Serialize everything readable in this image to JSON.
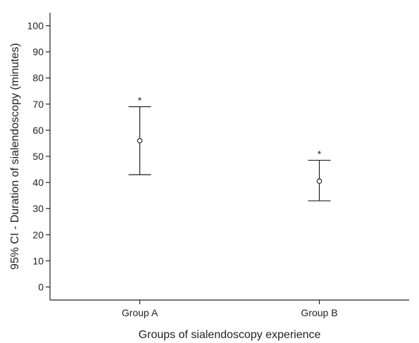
{
  "chart_data": {
    "type": "errorbar",
    "xlabel": "Groups of sialendoscopy experience",
    "ylabel": "95% CI - Duration of sialendoscopy (minutes)",
    "ylim": [
      -5,
      105
    ],
    "yticks": [
      0,
      10,
      20,
      30,
      40,
      50,
      60,
      70,
      80,
      90,
      100
    ],
    "categories": [
      "Group A",
      "Group B"
    ],
    "points": [
      {
        "category": "Group A",
        "mean": 56,
        "lower": 43,
        "upper": 69,
        "marker": "*"
      },
      {
        "category": "Group B",
        "mean": 40.5,
        "lower": 33,
        "upper": 48.5,
        "marker": "*"
      }
    ],
    "grid": false,
    "legend": "none"
  }
}
